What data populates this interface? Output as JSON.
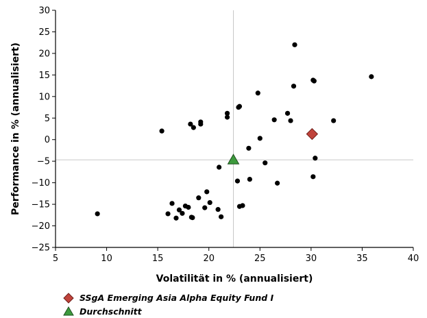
{
  "chart_data": {
    "type": "scatter",
    "xlabel": "Volatilität in % (annualisiert)",
    "ylabel": "Performance in % (annualisiert)",
    "xlim": [
      5,
      40
    ],
    "ylim": [
      -25,
      30
    ],
    "xticks": [
      5,
      10,
      15,
      20,
      25,
      30,
      35,
      40
    ],
    "yticks": [
      30,
      25,
      20,
      15,
      10,
      5,
      0,
      -5,
      -10,
      -15,
      -20,
      -25
    ],
    "grid": false,
    "legend_position": "bottom-left",
    "crosshair": {
      "x": 22.4,
      "y": -4.7
    },
    "series": [
      {
        "marker": "circle",
        "color": "#000000",
        "points": [
          [
            9.1,
            -17.2
          ],
          [
            15.4,
            2.0
          ],
          [
            16.0,
            -17.2
          ],
          [
            16.4,
            -14.8
          ],
          [
            16.8,
            -18.2
          ],
          [
            17.1,
            -16.3
          ],
          [
            17.4,
            -17.1
          ],
          [
            17.7,
            -15.4
          ],
          [
            18.0,
            -15.7
          ],
          [
            18.2,
            3.6
          ],
          [
            18.3,
            -18.0
          ],
          [
            18.4,
            -18.1
          ],
          [
            18.5,
            2.8
          ],
          [
            19.0,
            -13.5
          ],
          [
            19.2,
            4.1
          ],
          [
            19.2,
            3.6
          ],
          [
            19.6,
            -15.8
          ],
          [
            19.8,
            -12.1
          ],
          [
            20.1,
            -14.6
          ],
          [
            20.9,
            -16.2
          ],
          [
            21.0,
            -6.4
          ],
          [
            21.2,
            -17.9
          ],
          [
            21.8,
            6.1
          ],
          [
            21.8,
            5.2
          ],
          [
            22.8,
            -9.6
          ],
          [
            22.9,
            7.5
          ],
          [
            23.0,
            7.7
          ],
          [
            23.0,
            -15.5
          ],
          [
            23.3,
            -15.3
          ],
          [
            23.9,
            -2.0
          ],
          [
            24.0,
            -9.2
          ],
          [
            24.8,
            10.8
          ],
          [
            25.0,
            0.3
          ],
          [
            25.5,
            -5.4
          ],
          [
            26.4,
            4.6
          ],
          [
            26.7,
            -10.1
          ],
          [
            27.7,
            6.1
          ],
          [
            28.0,
            4.4
          ],
          [
            28.3,
            12.4
          ],
          [
            28.4,
            22.0
          ],
          [
            30.2,
            13.8
          ],
          [
            30.3,
            13.6
          ],
          [
            30.2,
            -8.6
          ],
          [
            30.4,
            -4.3
          ],
          [
            32.2,
            4.4
          ],
          [
            35.9,
            14.6
          ]
        ]
      },
      {
        "name": "SSgA Emerging Asia Alpha Equity Fund I",
        "marker": "diamond",
        "color": "#c0433b",
        "points": [
          [
            30.1,
            1.3
          ]
        ]
      },
      {
        "name": "Durchschnitt",
        "marker": "triangle",
        "color": "#3d9a3d",
        "points": [
          [
            22.4,
            -4.7
          ]
        ]
      }
    ]
  }
}
